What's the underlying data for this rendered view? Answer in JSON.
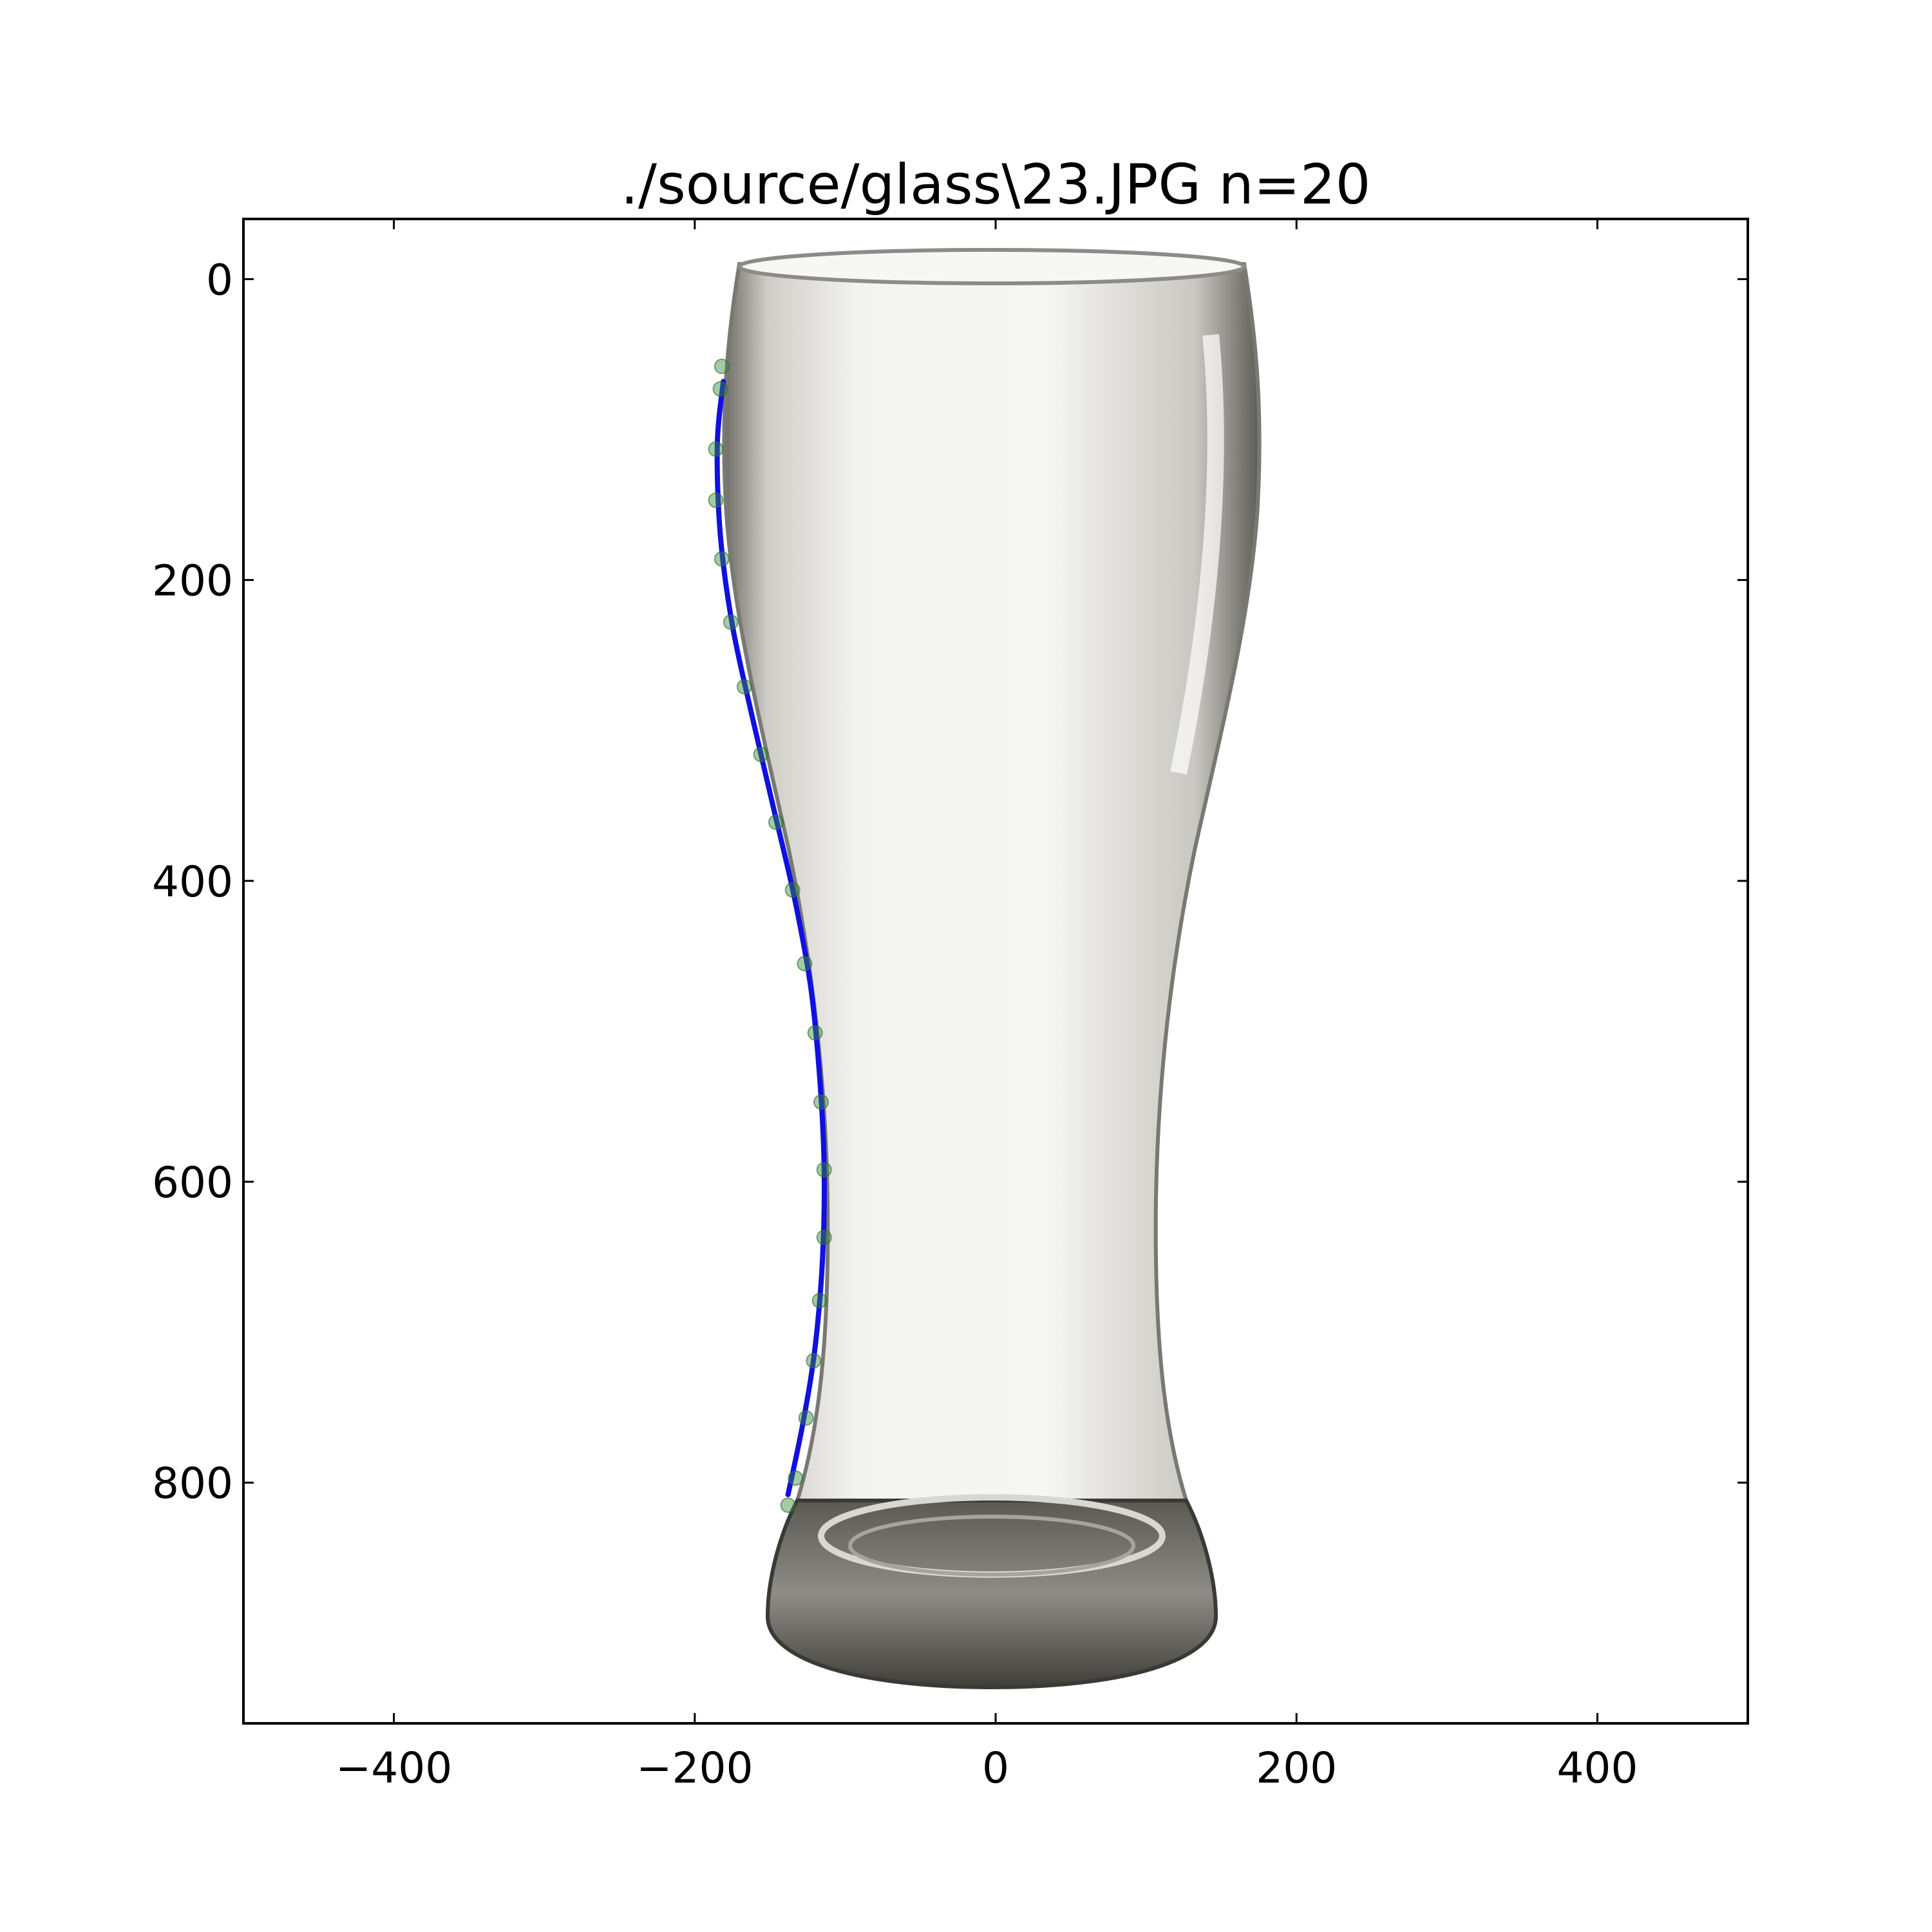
{
  "chart_data": {
    "type": "scatter",
    "title": "./source/glass\\23.JPG n=20",
    "xlabel": "",
    "ylabel": "",
    "xlim": [
      -500,
      500
    ],
    "ylim": [
      960,
      -40
    ],
    "y_inverted": true,
    "grid": false,
    "x_ticks": [
      {
        "value": -400,
        "label": "−400"
      },
      {
        "value": -200,
        "label": "−200"
      },
      {
        "value": 0,
        "label": "0"
      },
      {
        "value": 200,
        "label": "200"
      },
      {
        "value": 400,
        "label": "400"
      }
    ],
    "y_ticks": [
      {
        "value": 0,
        "label": "0"
      },
      {
        "value": 200,
        "label": "200"
      },
      {
        "value": 400,
        "label": "400"
      },
      {
        "value": 600,
        "label": "600"
      },
      {
        "value": 800,
        "label": "800"
      }
    ],
    "series": [
      {
        "kind": "points",
        "color": "#3a8a3a",
        "points": [
          {
            "x": -182,
            "y": 58
          },
          {
            "x": -183,
            "y": 73
          },
          {
            "x": -186,
            "y": 113
          },
          {
            "x": -186,
            "y": 147
          },
          {
            "x": -182,
            "y": 186
          },
          {
            "x": -176,
            "y": 228
          },
          {
            "x": -167,
            "y": 271
          },
          {
            "x": -156,
            "y": 316
          },
          {
            "x": -146,
            "y": 361
          },
          {
            "x": -135,
            "y": 406
          },
          {
            "x": -127,
            "y": 455
          },
          {
            "x": -120,
            "y": 501
          },
          {
            "x": -116,
            "y": 547
          },
          {
            "x": -114,
            "y": 592
          },
          {
            "x": -114,
            "y": 637
          },
          {
            "x": -117,
            "y": 679
          },
          {
            "x": -121,
            "y": 719
          },
          {
            "x": -126,
            "y": 757
          },
          {
            "x": -133,
            "y": 797
          },
          {
            "x": -138,
            "y": 815
          }
        ]
      },
      {
        "kind": "curve",
        "color": "#1010e0",
        "points": [
          {
            "x": -181,
            "y": 68
          },
          {
            "x": -185,
            "y": 110
          },
          {
            "x": -183,
            "y": 170
          },
          {
            "x": -175,
            "y": 230
          },
          {
            "x": -162,
            "y": 290
          },
          {
            "x": -148,
            "y": 350
          },
          {
            "x": -134,
            "y": 410
          },
          {
            "x": -123,
            "y": 470
          },
          {
            "x": -117,
            "y": 530
          },
          {
            "x": -114,
            "y": 590
          },
          {
            "x": -115,
            "y": 650
          },
          {
            "x": -120,
            "y": 710
          },
          {
            "x": -128,
            "y": 760
          },
          {
            "x": -138,
            "y": 808
          }
        ]
      }
    ],
    "background_image": {
      "subject": "beer glass",
      "glass_color": "#b9b7b0"
    }
  }
}
